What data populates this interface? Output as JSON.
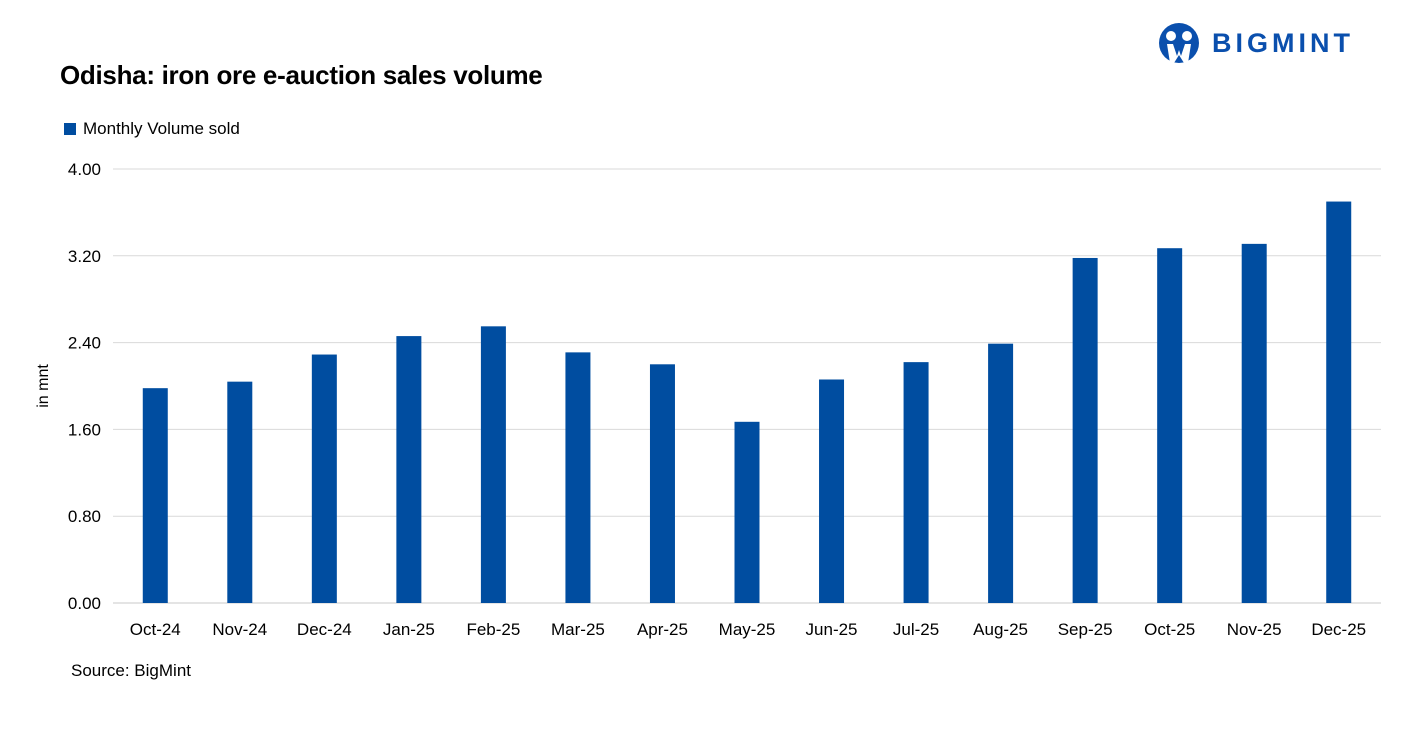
{
  "brand": {
    "name": "BIGMINT",
    "color": "#0a4fad"
  },
  "source": "Source: BigMint",
  "chart_data": {
    "type": "bar",
    "title": "Odisha: iron ore e-auction sales volume",
    "ylabel": "in mnt",
    "xlabel": "",
    "legend": {
      "position": "top-left"
    },
    "ylim": [
      0,
      4
    ],
    "yticks": [
      "0.00",
      "0.80",
      "1.60",
      "2.40",
      "3.20",
      "4.00"
    ],
    "grid": true,
    "categories": [
      "Oct-24",
      "Nov-24",
      "Dec-24",
      "Jan-25",
      "Feb-25",
      "Mar-25",
      "Apr-25",
      "May-25",
      "Jun-25",
      "Jul-25",
      "Aug-25",
      "Sep-25",
      "Oct-25",
      "Nov-25",
      "Dec-25"
    ],
    "series": [
      {
        "name": "Monthly Volume sold",
        "color": "#004da0",
        "values": [
          1.98,
          2.04,
          2.29,
          2.46,
          2.55,
          2.31,
          2.2,
          1.67,
          2.06,
          2.22,
          2.39,
          3.18,
          3.27,
          3.31,
          3.7
        ]
      }
    ]
  }
}
